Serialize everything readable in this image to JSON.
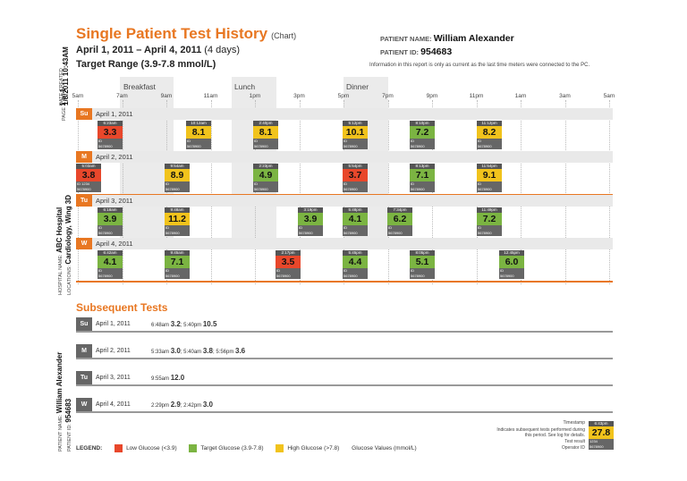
{
  "header": {
    "title": "Single Patient Test History",
    "title_suffix": "(Chart)",
    "dates": "April 1, 2011 – April 4, 2011",
    "days": "(4 days)",
    "target": "Target Range (3.9-7.8 mmol/L)",
    "patient_name_label": "PATIENT NAME:",
    "patient_name": "William Alexander",
    "patient_id_label": "PATIENT ID:",
    "patient_id": "954683",
    "note": "Information in this report is only as current as the last time meters were connected to the PC."
  },
  "side": {
    "page_label": "PAGE",
    "page_num": "1",
    "page_of": "OF",
    "page_total": "1",
    "date_created_label": "DATE CREATED",
    "date_created": "1/8/2011 10:43AM",
    "hospital_label": "HOSPITAL NAME:",
    "hospital": "ABC Hospital",
    "locations_label": "LOCATIONS:",
    "locations": "Cardiology, Wing 3D",
    "patient_name_label": "PATIENT NAME:",
    "patient_name": "William Alexander",
    "patient_id_label": "PATIENT ID:",
    "patient_id": "954683"
  },
  "meals": [
    "Breakfast",
    "Lunch",
    "Dinner"
  ],
  "ticks": [
    "5am",
    "7am",
    "9am",
    "11am",
    "1pm",
    "3pm",
    "5pm",
    "7pm",
    "9pm",
    "11pm",
    "1am",
    "3am",
    "5am"
  ],
  "days": [
    {
      "abbr": "Su",
      "date": "April 1, 2011",
      "readings": [
        {
          "time": "6:23am",
          "value": "3.3",
          "cls": "low",
          "id": "5678900",
          "meter": ""
        },
        {
          "time": "10:12am",
          "value": "8.1",
          "cls": "high",
          "id": "5678900",
          "meter": ""
        },
        {
          "time": "2:40pm",
          "value": "8.1",
          "cls": "high",
          "id": "5678900",
          "meter": ""
        },
        {
          "time": "5:12pm",
          "value": "10.1",
          "cls": "high",
          "id": "5678900",
          "meter": ""
        },
        {
          "time": "8:10pm",
          "value": "7.2",
          "cls": "tgt",
          "id": "5678900",
          "meter": ""
        },
        {
          "time": "11:12pm",
          "value": "8.2",
          "cls": "high",
          "id": "5678900",
          "meter": ""
        }
      ]
    },
    {
      "abbr": "M",
      "date": "April 2, 2011",
      "readings": [
        {
          "time": "5:03am",
          "value": "3.8",
          "cls": "low",
          "id": "5678900",
          "meter": "1234"
        },
        {
          "time": "9:54am",
          "value": "8.9",
          "cls": "high",
          "id": "5678900",
          "meter": ""
        },
        {
          "time": "2:23pm",
          "value": "4.9",
          "cls": "tgt",
          "id": "5678900",
          "meter": ""
        },
        {
          "time": "5:54pm",
          "value": "3.7",
          "cls": "low",
          "id": "5678900",
          "meter": ""
        },
        {
          "time": "8:13pm",
          "value": "7.1",
          "cls": "tgt",
          "id": "5678900",
          "meter": ""
        },
        {
          "time": "11:54pm",
          "value": "9.1",
          "cls": "high",
          "id": "5678900",
          "meter": ""
        }
      ]
    },
    {
      "abbr": "Tu",
      "date": "April 3, 2011",
      "readings": [
        {
          "time": "6:18am",
          "value": "3.9",
          "cls": "tgt",
          "id": "5678900",
          "meter": ""
        },
        {
          "time": "9:48am",
          "value": "11.2",
          "cls": "high",
          "id": "5678900",
          "meter": ""
        },
        {
          "time": "3:19pm",
          "value": "3.9",
          "cls": "tgt",
          "id": "5678900",
          "meter": ""
        },
        {
          "time": "5:48pm",
          "value": "4.1",
          "cls": "tgt",
          "id": "5678900",
          "meter": ""
        },
        {
          "time": "7:34pm",
          "value": "6.2",
          "cls": "tgt",
          "id": "5678900",
          "meter": ""
        },
        {
          "time": "11:49pm",
          "value": "7.2",
          "cls": "tgt",
          "id": "5678900",
          "meter": ""
        }
      ]
    },
    {
      "abbr": "W",
      "date": "April 4, 2011",
      "readings": [
        {
          "time": "6:42am",
          "value": "4.1",
          "cls": "tgt",
          "id": "5678900",
          "meter": ""
        },
        {
          "time": "9:45am",
          "value": "7.1",
          "cls": "tgt",
          "id": "5678900",
          "meter": ""
        },
        {
          "time": "2:17pm",
          "value": "3.5",
          "cls": "low",
          "id": "5678900",
          "meter": ""
        },
        {
          "time": "5:45pm",
          "value": "4.4",
          "cls": "tgt",
          "id": "5678900",
          "meter": ""
        },
        {
          "time": "8:05pm",
          "value": "5.1",
          "cls": "tgt",
          "id": "5678900",
          "meter": ""
        },
        {
          "time": "12:45pm",
          "value": "6.0",
          "cls": "tgt",
          "id": "5678900",
          "meter": ""
        }
      ]
    }
  ],
  "subsequent": {
    "title": "Subsequent Tests",
    "rows": [
      {
        "abbr": "Su",
        "date": "April 1, 2011",
        "tests": [
          {
            "t": "6:48am",
            "v": "3.2"
          },
          {
            "t": "5:40pm",
            "v": "10.5"
          }
        ]
      },
      {
        "abbr": "M",
        "date": "April 2, 2011",
        "tests": [
          {
            "t": "5:33am",
            "v": "3.0"
          },
          {
            "t": "5:40am",
            "v": "3.8"
          },
          {
            "t": "5:56pm",
            "v": "3.6"
          }
        ]
      },
      {
        "abbr": "Tu",
        "date": "April 3, 2011",
        "tests": [
          {
            "t": "9:55am",
            "v": "12.0"
          }
        ]
      },
      {
        "abbr": "W",
        "date": "April 4, 2011",
        "tests": [
          {
            "t": "2:29pm",
            "v": "2.9"
          },
          {
            "t": "2:42pm",
            "v": "3.0"
          }
        ]
      }
    ]
  },
  "legend": {
    "label": "LEGEND:",
    "low": "Low Glucose (<3.9)",
    "target": "Target Glucose (3.9-7.8)",
    "high": "High Glucose (>7.8)",
    "values": "Glucose Values (mmol/L)"
  },
  "key": {
    "timestamp": "Timestamp",
    "subsequent": "Indicates subsequent tests performed during this period. See log for details.",
    "result": "Test result",
    "operator": "Operator ID",
    "sample_time": "6:43pm",
    "sample_value": "27.8",
    "sample_id": "1234",
    "sample_op": "5678900"
  },
  "colors": {
    "accent": "#e87722",
    "low": "#e8472b",
    "target": "#7bb442",
    "high": "#f1c31c"
  }
}
